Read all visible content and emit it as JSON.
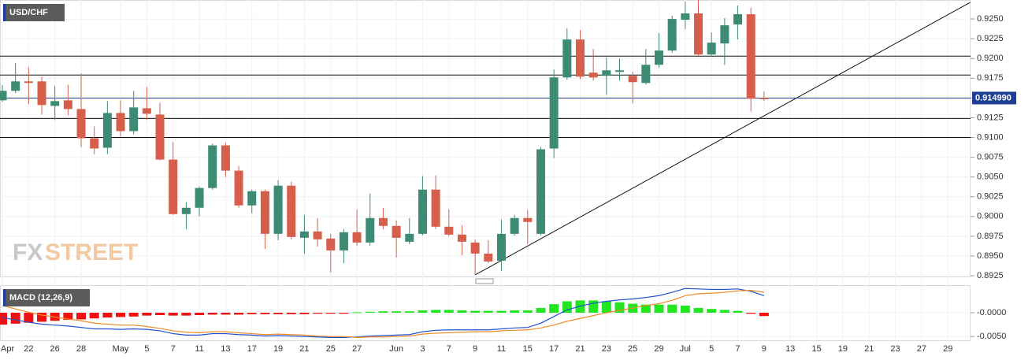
{
  "chart_data": [
    {
      "type": "candlestick",
      "title": "USD/CHF",
      "categories": [
        "Apr",
        null,
        "22",
        null,
        "26",
        null,
        "28",
        null,
        null,
        "May",
        null,
        "5",
        null,
        "7",
        null,
        "11",
        null,
        "13",
        null,
        "17",
        null,
        "19",
        null,
        "21",
        null,
        "25",
        null,
        "27",
        null,
        null,
        "Jun",
        null,
        "3",
        null,
        "7",
        null,
        "9",
        null,
        "11",
        null,
        "15",
        null,
        "17",
        null,
        "21",
        null,
        "23",
        null,
        "25",
        null,
        "29",
        null,
        "Jul",
        null,
        "5",
        null,
        "7",
        null,
        "9",
        null,
        "13",
        null,
        "15",
        null,
        "19",
        null,
        "21",
        null,
        "23",
        null,
        "27",
        null,
        "29",
        null
      ],
      "open": [
        0.9147,
        0.9159,
        0.9171,
        0.9171,
        0.914,
        0.9147,
        0.9136,
        0.9099,
        0.9087,
        0.9131,
        0.9108,
        0.9137,
        0.9129,
        0.9072,
        0.9003,
        0.9011,
        0.9036,
        0.909,
        0.9058,
        0.9014,
        0.9032,
        0.8978,
        0.9039,
        0.8973,
        0.8981,
        0.8972,
        0.8957,
        0.898,
        0.8967,
        0.8998,
        0.8988,
        0.8968,
        0.8978,
        0.9034,
        0.8987,
        0.8977,
        0.8967,
        0.8953,
        0.8944,
        0.8978,
        0.8998,
        0.8978,
        0.9086,
        0.9176,
        0.9224,
        0.9182,
        0.9178,
        0.9183,
        0.9178,
        0.9169,
        0.9192,
        0.921,
        0.9249,
        0.9257,
        0.9205,
        0.9219,
        0.9243,
        0.9256,
        0.915,
        null,
        null,
        null,
        null,
        null,
        null,
        null,
        null,
        null,
        null,
        null,
        null,
        null,
        null,
        null
      ],
      "high": [
        0.9166,
        0.9194,
        0.9189,
        0.9177,
        0.9165,
        0.9167,
        0.9181,
        0.9114,
        0.9146,
        0.9147,
        0.9159,
        0.9164,
        0.9144,
        0.9094,
        0.9018,
        0.9038,
        0.9092,
        0.9093,
        0.9064,
        0.9034,
        0.9034,
        0.9046,
        0.9044,
        0.9002,
        0.8998,
        0.8978,
        0.8984,
        0.9009,
        0.9029,
        0.9011,
        0.8995,
        0.8998,
        0.9051,
        0.9052,
        0.9009,
        0.8989,
        0.8971,
        0.897,
        0.8996,
        0.9002,
        0.9008,
        0.9088,
        0.9186,
        0.9238,
        0.9236,
        0.9212,
        0.9201,
        0.92,
        0.9183,
        0.9212,
        0.9232,
        0.9254,
        0.9272,
        0.9274,
        0.9233,
        0.9251,
        0.9267,
        0.9264,
        0.9158,
        null,
        null,
        null,
        null,
        null,
        null,
        null,
        null,
        null,
        null,
        null,
        null,
        null,
        null,
        null
      ],
      "low": [
        0.9145,
        0.9156,
        0.9142,
        0.9129,
        0.9122,
        0.9128,
        0.9088,
        0.9079,
        0.9079,
        0.9101,
        0.9104,
        0.9122,
        0.9071,
        0.9002,
        0.8984,
        0.9,
        0.9034,
        0.905,
        0.9011,
        0.9004,
        0.8959,
        0.897,
        0.8971,
        0.8953,
        0.8962,
        0.8929,
        0.8941,
        0.8963,
        0.8963,
        0.8984,
        0.8948,
        0.8965,
        0.8976,
        0.8984,
        0.8975,
        0.8951,
        0.8926,
        0.8941,
        0.8931,
        0.8976,
        0.8965,
        0.8976,
        0.9074,
        0.9173,
        0.9174,
        0.9172,
        0.9154,
        0.9172,
        0.9143,
        0.9167,
        0.9188,
        0.9207,
        0.9237,
        0.9203,
        0.9202,
        0.9192,
        0.9224,
        0.9133,
        0.9146,
        null,
        null,
        null,
        null,
        null,
        null,
        null,
        null,
        null,
        null,
        null,
        null,
        null,
        null,
        null
      ],
      "close": [
        0.9159,
        0.9171,
        0.9169,
        0.9141,
        0.9146,
        0.9136,
        0.9099,
        0.9086,
        0.9131,
        0.9108,
        0.9138,
        0.913,
        0.9072,
        0.9003,
        0.9011,
        0.9036,
        0.909,
        0.9058,
        0.9014,
        0.9032,
        0.8978,
        0.9039,
        0.8974,
        0.8981,
        0.8971,
        0.8957,
        0.898,
        0.8967,
        0.8998,
        0.8988,
        0.8973,
        0.8978,
        0.9034,
        0.8987,
        0.8977,
        0.8968,
        0.8953,
        0.8943,
        0.8978,
        0.8998,
        0.8993,
        0.9085,
        0.9176,
        0.9224,
        0.9177,
        0.9176,
        0.9185,
        0.9185,
        0.917,
        0.9192,
        0.921,
        0.925,
        0.9257,
        0.9205,
        0.922,
        0.9242,
        0.9256,
        0.9149,
        0.9149,
        null,
        null,
        null,
        null,
        null,
        null,
        null,
        null,
        null,
        null,
        null,
        null,
        null,
        null,
        null
      ],
      "up_color": "#3d8b74",
      "down_color": "#d55f4b",
      "ylim": [
        0.8923,
        0.9274
      ],
      "yticks": [
        0.8925,
        {
          "value": 0.895,
          "label": "0.8950"
        },
        0.8975,
        {
          "value": 0.9,
          "label": "0.9000"
        },
        0.9025,
        {
          "value": 0.905,
          "label": "0.9050"
        },
        0.9075,
        {
          "value": 0.91,
          "label": "0.9100"
        },
        0.9125,
        {
          "value": 0.915,
          "label": "0.9150"
        },
        0.9175,
        {
          "value": 0.92,
          "label": "0.9200"
        },
        0.9225,
        {
          "value": 0.925,
          "label": "0.9250"
        }
      ],
      "levels": [
        0.9203,
        0.9179,
        0.9124,
        0.91
      ],
      "trendline": {
        "x": [
          36,
          73.7
        ],
        "y": [
          0.8926,
          0.9271
        ]
      },
      "last_price": {
        "value": 0.91499,
        "label": "0.914990",
        "color": "#1c3f95"
      },
      "grid": true
    },
    {
      "type": "macd",
      "title": "MACD (12,26,9)",
      "ylim": [
        -0.0058,
        0.0058
      ],
      "yticks": [
        {
          "value": 0,
          "label": "-0.0000"
        },
        {
          "value": -0.005,
          "label": "-0.0050"
        }
      ],
      "histogram": {
        "up_color": "#22e622",
        "down_color": "#ee1111",
        "values": [
          -0.0025,
          -0.0023,
          -0.0021,
          -0.0019,
          -0.0017,
          -0.0015,
          -0.0014,
          -0.0012,
          -0.001,
          -0.0009,
          -0.0008,
          -0.0006,
          -0.0005,
          -0.0006,
          -0.0006,
          -0.0005,
          -0.0004,
          -0.0004,
          -0.0004,
          -0.0003,
          -0.0003,
          -0.0003,
          -0.0003,
          -0.0003,
          -0.0002,
          -0.0002,
          -0.0002,
          0.0001,
          0.0002,
          0.0003,
          0.0003,
          0.0003,
          0.0005,
          0.0006,
          0.0006,
          0.0005,
          0.0004,
          0.0004,
          0.0004,
          0.0005,
          0.0005,
          0.001,
          0.0018,
          0.0024,
          0.0026,
          0.0026,
          0.0024,
          0.0022,
          0.0019,
          0.0017,
          0.0017,
          0.0017,
          0.0015,
          0.001,
          0.0008,
          0.0006,
          0.0004,
          -0.0002,
          -0.0007
        ]
      },
      "series": [
        {
          "color": "#1f4fd1",
          "values": [
            -0.001,
            -0.0015,
            -0.002,
            -0.0024,
            -0.0026,
            -0.0028,
            -0.0031,
            -0.0034,
            -0.0034,
            -0.0035,
            -0.0034,
            -0.0035,
            -0.0038,
            -0.0044,
            -0.0047,
            -0.0047,
            -0.0044,
            -0.0044,
            -0.0046,
            -0.0047,
            -0.0049,
            -0.0048,
            -0.0049,
            -0.005,
            -0.0051,
            -0.0052,
            -0.0052,
            -0.0051,
            -0.0049,
            -0.0048,
            -0.0047,
            -0.0046,
            -0.004,
            -0.0037,
            -0.0036,
            -0.0036,
            -0.0036,
            -0.0036,
            -0.0034,
            -0.0032,
            -0.0031,
            -0.0022,
            -0.0008,
            0.0006,
            0.0014,
            0.002,
            0.0024,
            0.0027,
            0.0029,
            0.0032,
            0.0036,
            0.0043,
            0.0051,
            0.005,
            0.0049,
            0.0049,
            0.005,
            0.0045,
            0.0036
          ]
        },
        {
          "color": "#f08a24",
          "values": [
            0.0015,
            0.0008,
            0.0001,
            -0.0005,
            -0.0009,
            -0.0013,
            -0.0017,
            -0.0022,
            -0.0024,
            -0.0026,
            -0.0026,
            -0.0029,
            -0.0033,
            -0.0038,
            -0.0041,
            -0.0042,
            -0.004,
            -0.004,
            -0.0042,
            -0.0044,
            -0.0046,
            -0.0045,
            -0.0046,
            -0.0047,
            -0.0049,
            -0.005,
            -0.005,
            -0.0052,
            -0.0051,
            -0.0051,
            -0.005,
            -0.0049,
            -0.0045,
            -0.0043,
            -0.0042,
            -0.0041,
            -0.004,
            -0.004,
            -0.0038,
            -0.0037,
            -0.0036,
            -0.0032,
            -0.0026,
            -0.0018,
            -0.0012,
            -0.0006,
            0.0,
            0.0005,
            0.001,
            0.0015,
            0.0019,
            0.0026,
            0.0036,
            0.004,
            0.0041,
            0.0043,
            0.0046,
            0.0047,
            0.0043
          ]
        }
      ]
    }
  ],
  "watermark": {
    "fx": "FX",
    "street": "STREET"
  }
}
